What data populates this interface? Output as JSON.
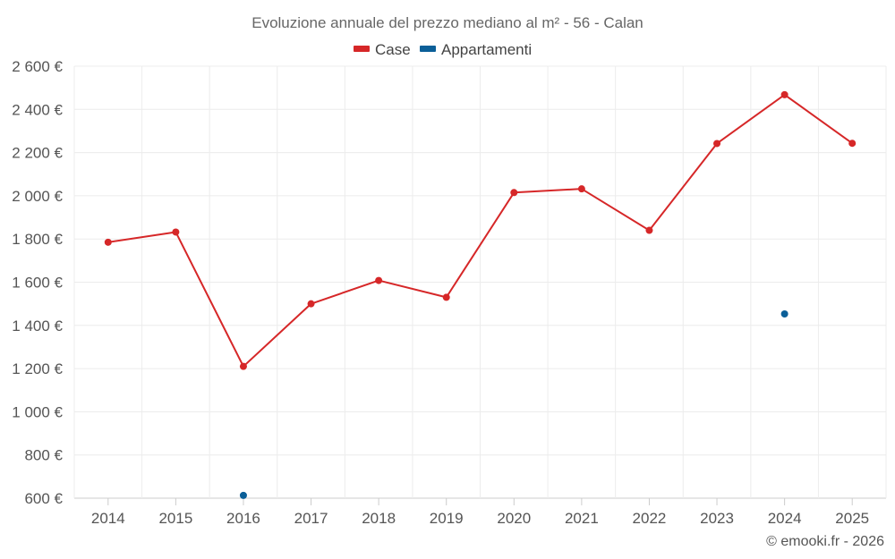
{
  "chart_data": {
    "type": "line",
    "title": "Evoluzione annuale del prezzo mediano al m² - 56 - Calan",
    "categories": [
      "2014",
      "2015",
      "2016",
      "2017",
      "2018",
      "2019",
      "2020",
      "2021",
      "2022",
      "2023",
      "2024",
      "2025"
    ],
    "series": [
      {
        "name": "Case",
        "color": "#d62728",
        "values": [
          1785,
          1832,
          1210,
          1500,
          1608,
          1530,
          2015,
          2032,
          1840,
          2242,
          2468,
          2243
        ]
      },
      {
        "name": "Appartamenti",
        "color": "#0b5f98",
        "values": [
          null,
          null,
          613,
          null,
          null,
          null,
          null,
          null,
          null,
          null,
          1453,
          null
        ]
      }
    ],
    "y_ticks": [
      600,
      800,
      1000,
      1200,
      1400,
      1600,
      1800,
      2000,
      2200,
      2400,
      2600
    ],
    "y_tick_labels": [
      "600 €",
      "800 €",
      "1 000 €",
      "1 200 €",
      "1 400 €",
      "1 600 €",
      "1 800 €",
      "2 000 €",
      "2 200 €",
      "2 400 €",
      "2 600 €"
    ],
    "ylim": [
      600,
      2600
    ],
    "xlabel": "",
    "ylabel": "",
    "legend_position": "top-center",
    "grid": true
  },
  "credit": "© emooki.fr - 2026"
}
